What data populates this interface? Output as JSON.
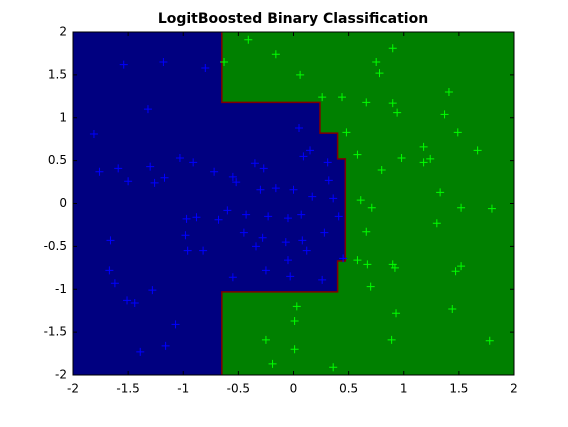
{
  "chart_data": {
    "type": "scatter",
    "title": "LogitBoosted Binary Classification",
    "xlim": [
      -2,
      2
    ],
    "ylim": [
      -2,
      2
    ],
    "xticks": [
      -2,
      -1.5,
      -1,
      -0.5,
      0,
      0.5,
      1,
      1.5,
      2
    ],
    "yticks": [
      -2,
      -1.5,
      -1,
      -0.5,
      0,
      0.5,
      1,
      1.5,
      2
    ],
    "background_color": "#008000",
    "boundary_color": "#800000",
    "regions": [
      {
        "color": "#000080",
        "x": [
          -2,
          -0.65,
          -0.65,
          0.24,
          0.24,
          0.4,
          0.4,
          0.47,
          0.47,
          0.4,
          0.4,
          -0.65,
          -0.65,
          -2
        ],
        "y": [
          2,
          2,
          1.18,
          1.18,
          0.82,
          0.82,
          0.52,
          0.52,
          -0.67,
          -0.67,
          -1.03,
          -1.03,
          -2,
          -2
        ]
      }
    ],
    "series": [
      {
        "color": "#0000ff",
        "x": [
          -1.54,
          -1.18,
          -0.8,
          -1.32,
          -1.81,
          -1.76,
          -1.59,
          -1.5,
          -1.26,
          -1.17,
          -1.03,
          -0.91,
          -0.72,
          -0.52,
          -0.35,
          -0.27,
          -0.3,
          -0.16,
          0.0,
          0.05,
          0.09,
          0.15,
          0.31,
          0.32,
          0.36,
          0.17,
          0.07,
          -0.05,
          -0.23,
          -0.43,
          -0.6,
          -0.68,
          -0.88,
          -0.97,
          -0.98,
          -0.82,
          -0.96,
          -0.45,
          -0.34,
          -0.28,
          -0.07,
          0.08,
          0.12,
          0.28,
          0.41,
          0.45,
          -0.05,
          -0.25,
          -0.03,
          -0.55,
          0.26,
          -1.66,
          -1.67,
          -1.62,
          -1.51,
          -1.44,
          -1.28,
          -1.07,
          -1.16,
          -1.39,
          -0.55,
          -1.3
        ],
        "y": [
          1.62,
          1.65,
          1.58,
          1.1,
          0.81,
          0.37,
          0.41,
          0.26,
          0.24,
          0.3,
          0.53,
          0.48,
          0.37,
          0.25,
          0.47,
          0.41,
          0.16,
          0.18,
          0.16,
          0.88,
          0.55,
          0.62,
          0.48,
          0.27,
          0.06,
          0.08,
          -0.13,
          -0.17,
          -0.15,
          -0.13,
          -0.08,
          -0.19,
          -0.16,
          -0.18,
          -0.37,
          -0.55,
          -0.55,
          -0.34,
          -0.5,
          -0.4,
          -0.45,
          -0.43,
          -0.55,
          -0.34,
          -0.15,
          -0.64,
          -0.66,
          -0.78,
          -0.85,
          -0.86,
          -0.89,
          -0.43,
          -0.78,
          -0.93,
          -1.13,
          -1.16,
          -1.01,
          -1.41,
          -1.66,
          -1.73,
          0.31,
          0.43
        ]
      },
      {
        "color": "#00ff00",
        "x": [
          -0.41,
          -0.16,
          -0.63,
          0.06,
          0.26,
          0.44,
          0.66,
          0.9,
          0.75,
          0.78,
          0.9,
          1.41,
          1.37,
          1.49,
          0.94,
          0.48,
          0.58,
          0.98,
          0.8,
          1.18,
          1.18,
          1.24,
          1.67,
          1.33,
          1.52,
          1.8,
          1.3,
          0.61,
          0.71,
          0.66,
          0.58,
          0.67,
          0.9,
          0.92,
          0.7,
          1.47,
          1.52,
          1.44,
          0.93,
          0.03,
          0.01,
          -0.25,
          0.01,
          0.36,
          -0.19,
          0.89,
          1.78
        ],
        "y": [
          1.91,
          1.74,
          1.65,
          1.5,
          1.24,
          1.24,
          1.18,
          1.17,
          1.65,
          1.52,
          1.81,
          1.3,
          1.04,
          0.83,
          1.06,
          0.83,
          0.57,
          0.53,
          0.39,
          0.66,
          0.48,
          0.52,
          0.62,
          0.13,
          -0.05,
          -0.06,
          -0.23,
          0.04,
          -0.05,
          -0.33,
          -0.66,
          -0.71,
          -0.71,
          -0.75,
          -0.97,
          -0.79,
          -0.73,
          -1.23,
          -1.28,
          -1.2,
          -1.37,
          -1.59,
          -1.7,
          -1.91,
          -1.87,
          -1.59,
          -1.6
        ]
      }
    ]
  }
}
